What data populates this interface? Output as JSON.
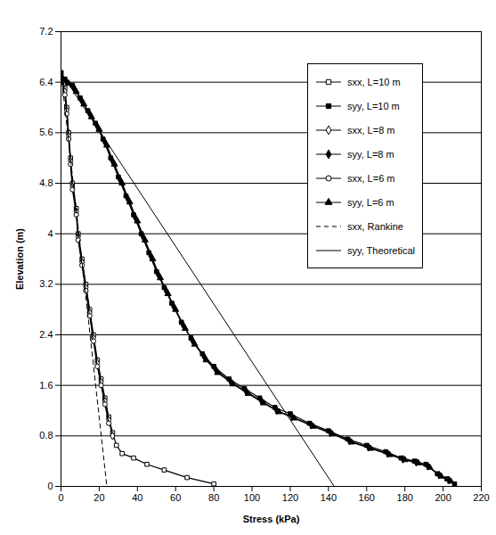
{
  "chart_data": {
    "type": "line",
    "x_label": "Stress (kPa)",
    "y_label": "Elevation (m)",
    "xlim": [
      0,
      220
    ],
    "xticks": [
      0,
      20,
      40,
      60,
      80,
      100,
      120,
      140,
      160,
      180,
      200,
      220
    ],
    "ylim": [
      0,
      7.2
    ],
    "yticks": [
      0,
      0.8,
      1.6,
      2.4,
      3.2,
      4,
      4.8,
      5.6,
      6.4,
      7.2
    ],
    "grid": "y",
    "legend": "top-right",
    "series": [
      {
        "name": "sxx, L=10 m",
        "color": "#000000",
        "marker": "open_square",
        "line_style": "solid",
        "x": [
          0,
          2,
          3,
          4,
          5,
          6,
          8,
          9,
          11,
          13,
          15,
          17,
          19,
          21,
          23,
          25,
          27,
          29,
          32,
          38,
          45,
          54,
          66,
          80
        ],
        "values": [
          6.55,
          6.3,
          6.0,
          5.6,
          5.2,
          4.8,
          4.4,
          4.0,
          3.6,
          3.2,
          2.8,
          2.4,
          2.0,
          1.7,
          1.4,
          1.1,
          0.85,
          0.65,
          0.52,
          0.45,
          0.35,
          0.26,
          0.14,
          0.04
        ]
      },
      {
        "name": "syy, L=10 m",
        "color": "#000000",
        "marker": "square",
        "line_style": "solid",
        "x": [
          0,
          2,
          6,
          10,
          14,
          18,
          22,
          26,
          30,
          34,
          38,
          42,
          46,
          50,
          54,
          58,
          63,
          68,
          74,
          80,
          88,
          96,
          104,
          112,
          120,
          130,
          140,
          150,
          160,
          170,
          178,
          185,
          191,
          197,
          202,
          206
        ],
        "values": [
          6.55,
          6.45,
          6.35,
          6.15,
          5.95,
          5.75,
          5.5,
          5.2,
          4.9,
          4.6,
          4.3,
          4.0,
          3.7,
          3.4,
          3.15,
          2.9,
          2.6,
          2.35,
          2.1,
          1.9,
          1.7,
          1.55,
          1.4,
          1.25,
          1.15,
          1.0,
          0.88,
          0.75,
          0.65,
          0.55,
          0.45,
          0.4,
          0.35,
          0.2,
          0.12,
          0.04
        ]
      },
      {
        "name": "sxx, L=8 m",
        "color": "#000000",
        "marker": "open_diamond",
        "line_style": "solid",
        "x": [
          0,
          2,
          3,
          4,
          5,
          6,
          8,
          9,
          11,
          13,
          15,
          17,
          19,
          21,
          23,
          25,
          27
        ],
        "values": [
          6.5,
          6.25,
          5.95,
          5.55,
          5.15,
          4.75,
          4.35,
          3.95,
          3.55,
          3.15,
          2.75,
          2.35,
          1.95,
          1.65,
          1.35,
          1.05,
          0.8
        ]
      },
      {
        "name": "syy, L=8 m",
        "color": "#000000",
        "marker": "diamond",
        "line_style": "solid",
        "x": [
          0,
          3,
          7,
          11,
          15,
          19,
          23,
          27,
          31,
          35,
          39,
          43,
          47,
          51,
          55,
          59,
          64,
          69,
          75,
          81,
          89,
          97,
          105,
          113,
          121,
          131,
          141,
          151,
          161,
          171,
          179,
          186,
          192,
          198,
          203
        ],
        "values": [
          6.5,
          6.4,
          6.3,
          6.1,
          5.9,
          5.7,
          5.45,
          5.15,
          4.85,
          4.55,
          4.25,
          3.95,
          3.65,
          3.35,
          3.1,
          2.85,
          2.55,
          2.3,
          2.05,
          1.85,
          1.65,
          1.5,
          1.35,
          1.2,
          1.1,
          0.97,
          0.85,
          0.72,
          0.62,
          0.52,
          0.43,
          0.38,
          0.32,
          0.18,
          0.1
        ]
      },
      {
        "name": "sxx, L=6 m",
        "color": "#000000",
        "marker": "open_circle",
        "line_style": "solid",
        "x": [
          0,
          2,
          3,
          4,
          5,
          6,
          8,
          9,
          11,
          13,
          15,
          17,
          19,
          21,
          23,
          25
        ],
        "values": [
          6.45,
          6.2,
          5.9,
          5.5,
          5.1,
          4.7,
          4.3,
          3.9,
          3.5,
          3.1,
          2.7,
          2.3,
          1.9,
          1.6,
          1.3,
          1.0
        ]
      },
      {
        "name": "syy, L=6 m",
        "color": "#000000",
        "marker": "triangle",
        "line_style": "solid",
        "x": [
          0,
          4,
          8,
          12,
          16,
          20,
          24,
          28,
          32,
          36,
          40,
          44,
          48,
          52,
          56,
          60,
          65,
          70,
          76,
          82,
          90,
          98,
          106,
          114,
          122,
          132,
          142,
          152,
          162,
          172,
          180,
          187,
          193,
          199,
          204
        ],
        "values": [
          6.45,
          6.38,
          6.25,
          6.05,
          5.85,
          5.65,
          5.4,
          5.1,
          4.8,
          4.5,
          4.2,
          3.9,
          3.6,
          3.3,
          3.05,
          2.8,
          2.5,
          2.25,
          2.0,
          1.8,
          1.62,
          1.47,
          1.32,
          1.18,
          1.08,
          0.95,
          0.83,
          0.7,
          0.6,
          0.5,
          0.42,
          0.37,
          0.3,
          0.16,
          0.08
        ]
      },
      {
        "name": "sxx, Rankine",
        "color": "#000000",
        "marker": "none",
        "line_style": "dashed",
        "x": [
          0,
          24
        ],
        "values": [
          6.55,
          0
        ]
      },
      {
        "name": "syy, Theoretical",
        "color": "#000000",
        "marker": "none",
        "line_style": "solid",
        "x": [
          0,
          143
        ],
        "values": [
          6.55,
          0
        ]
      }
    ]
  }
}
